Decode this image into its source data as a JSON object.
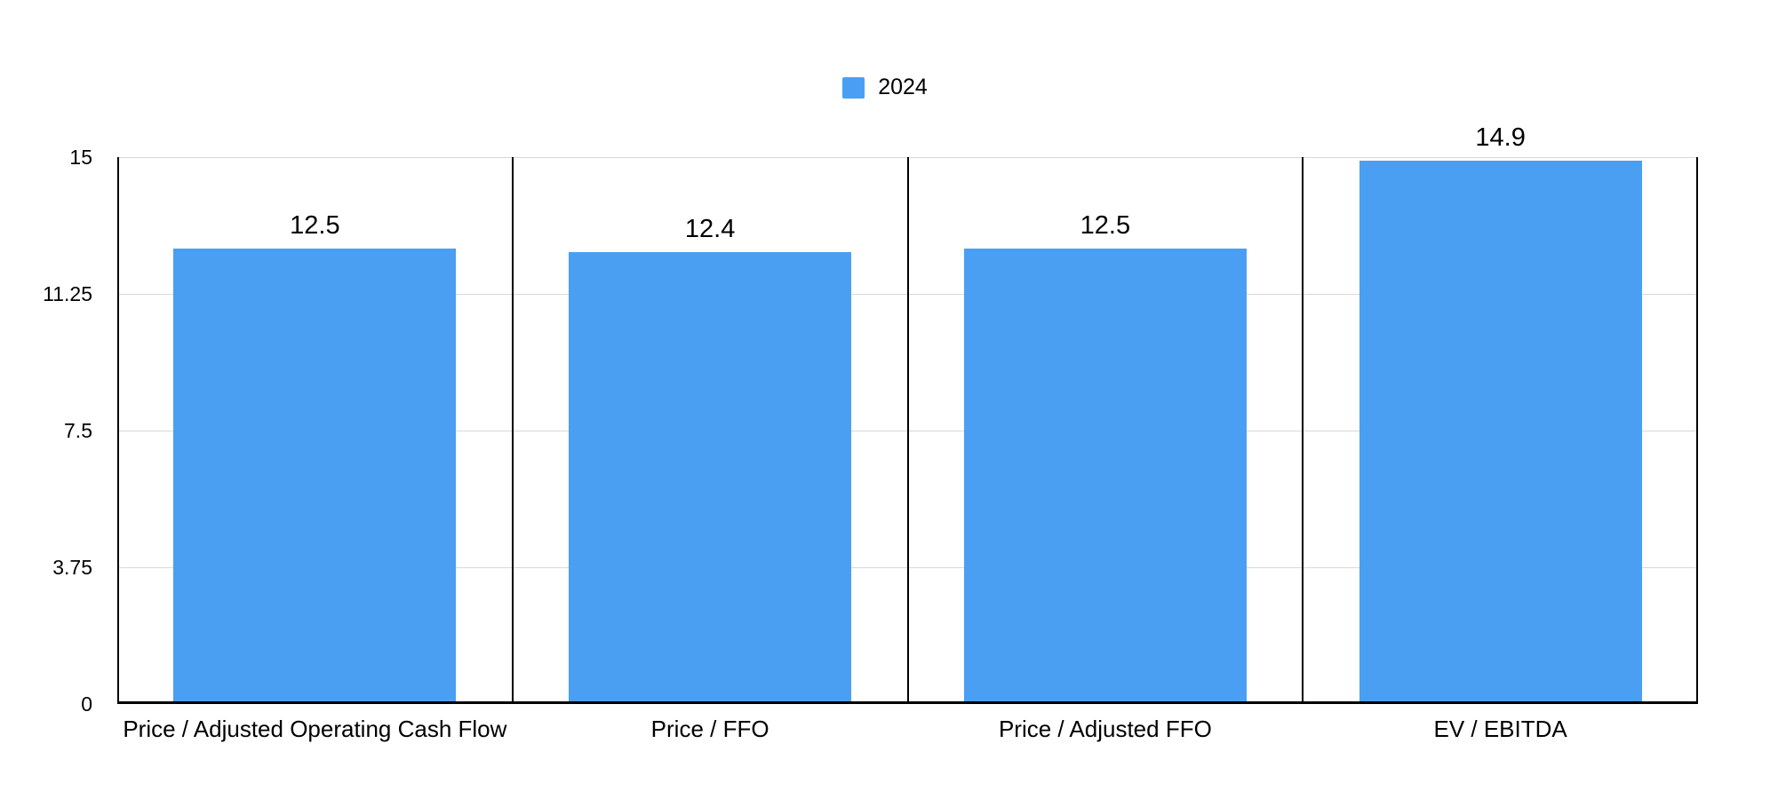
{
  "chart": {
    "legend": {
      "label": "2024",
      "swatch_color": "#4A9FF2"
    }
  },
  "chart_data": {
    "type": "bar",
    "title": "",
    "xlabel": "",
    "ylabel": "",
    "categories": [
      "Price / Adjusted Operating Cash Flow",
      "Price / FFO",
      "Price / Adjusted FFO",
      "EV / EBITDA"
    ],
    "series": [
      {
        "name": "2024",
        "values": [
          12.5,
          12.4,
          12.5,
          14.9
        ],
        "color": "#4A9FF2"
      }
    ],
    "value_labels": [
      "12.5",
      "12.4",
      "12.5",
      "14.9"
    ],
    "ylim": [
      0,
      15
    ],
    "yticks": [
      0,
      3.75,
      7.5,
      11.25,
      15
    ],
    "ytick_labels": [
      "0",
      "3.75",
      "7.5",
      "11.25",
      "15"
    ],
    "grid": "horizontal",
    "legend_position": "top-center",
    "colors": {
      "bar": "#4A9FF2",
      "axis": "#000000",
      "separator": "#000000",
      "gridline": "#D8D8D8",
      "text": "#000000",
      "background": "#FFFFFF"
    }
  }
}
